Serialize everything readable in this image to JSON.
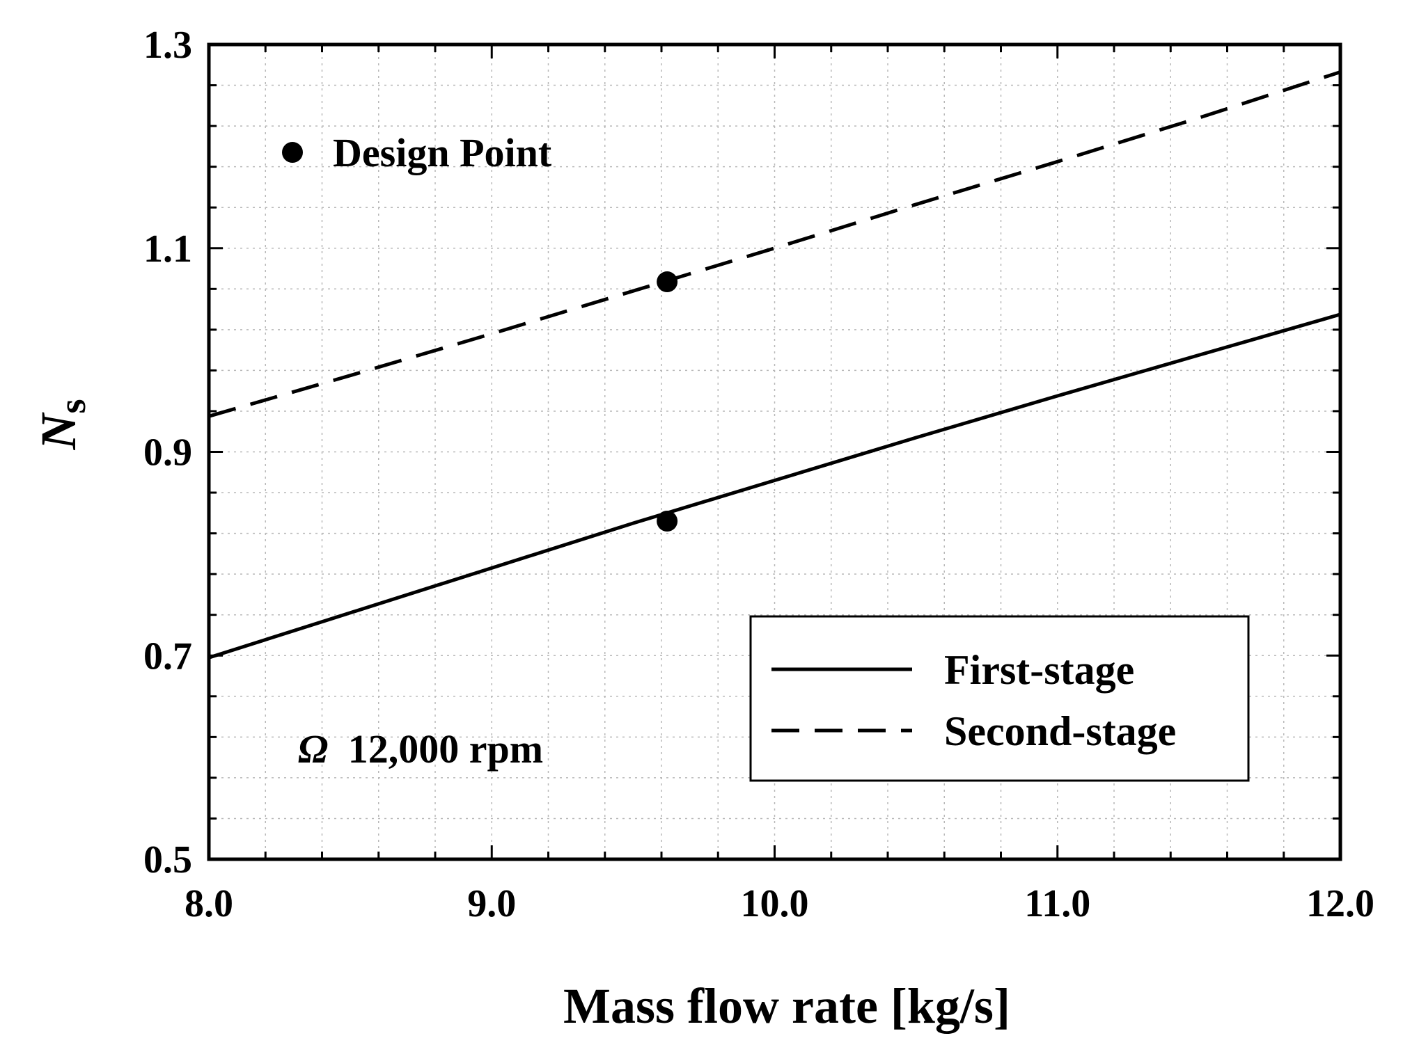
{
  "chart_data": {
    "type": "line",
    "title": "",
    "xlabel": "Mass flow rate [kg/s]",
    "ylabel_main": "N",
    "ylabel_sub": "s",
    "xlim": [
      8.0,
      12.0
    ],
    "ylim": [
      0.5,
      1.3
    ],
    "x_ticks": [
      8.0,
      9.0,
      10.0,
      11.0,
      12.0
    ],
    "x_tick_labels": [
      "8.0",
      "9.0",
      "10.0",
      "11.0",
      "12.0"
    ],
    "y_ticks": [
      0.5,
      0.7,
      0.9,
      1.1,
      1.3
    ],
    "y_tick_labels": [
      "0.5",
      "0.7",
      "0.9",
      "1.1",
      "1.3"
    ],
    "x_minor_step": 0.2,
    "y_minor_step": 0.04,
    "grid": true,
    "series": [
      {
        "name": "First-stage",
        "style": "solid",
        "x": [
          8.0,
          8.5,
          9.0,
          9.5,
          10.0,
          10.5,
          11.0,
          11.5,
          12.0
        ],
        "values": [
          0.698,
          0.742,
          0.786,
          0.83,
          0.872,
          0.914,
          0.955,
          0.995,
          1.035
        ]
      },
      {
        "name": "Second-stage",
        "style": "dashed",
        "x": [
          8.0,
          8.5,
          9.0,
          9.5,
          10.0,
          10.5,
          11.0,
          11.5,
          12.0
        ],
        "values": [
          0.935,
          0.975,
          1.016,
          1.058,
          1.1,
          1.143,
          1.185,
          1.228,
          1.273
        ]
      }
    ],
    "design_points": [
      {
        "series": "First-stage",
        "x": 9.62,
        "y": 0.832
      },
      {
        "series": "Second-stage",
        "x": 9.62,
        "y": 1.067
      }
    ],
    "annotations": {
      "design_point_label": "Design Point",
      "speed_symbol": "Ω",
      "speed_text": "12,000 rpm"
    },
    "legend_position": "bottom-right"
  }
}
